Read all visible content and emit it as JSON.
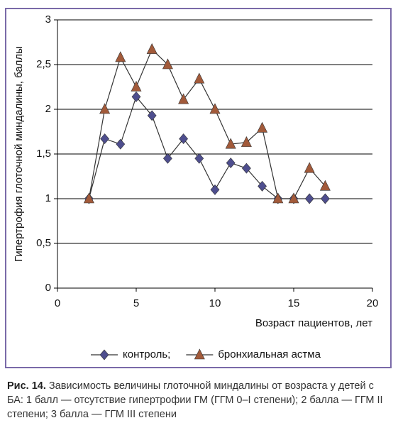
{
  "chart_data": {
    "type": "line",
    "ylabel": "Гипертрофия глоточной миндалины, баллы",
    "xlabel": "Возраст пациентов, лет",
    "x": [
      2,
      3,
      4,
      5,
      6,
      7,
      8,
      9,
      10,
      11,
      12,
      13,
      14,
      15,
      16,
      17
    ],
    "series": [
      {
        "name": "контроль;",
        "color": "#4e4e8e",
        "marker": "diamond",
        "values": [
          1,
          1.67,
          1.61,
          2.14,
          1.93,
          1.45,
          1.67,
          1.45,
          1.1,
          1.4,
          1.34,
          1.14,
          1,
          1,
          1,
          1
        ]
      },
      {
        "name": "бронхиальная астма",
        "color": "#a25a3a",
        "marker": "triangle",
        "values": [
          1,
          2,
          2.58,
          2.25,
          2.67,
          2.5,
          2.11,
          2.34,
          2,
          1.61,
          1.63,
          1.79,
          1,
          1,
          1.34,
          1.14
        ]
      }
    ],
    "xlim": [
      0,
      20
    ],
    "xticks": [
      0,
      5,
      10,
      15,
      20
    ],
    "ylim": [
      0,
      3
    ],
    "yticks": [
      0,
      {
        "value": 0.5,
        "label": "0,5"
      },
      1,
      {
        "value": 1.5,
        "label": "1,5"
      },
      2,
      {
        "value": 2.5,
        "label": "2,5"
      },
      3
    ],
    "grid": true,
    "legend": "bottom"
  },
  "caption": {
    "label": "Рис. 14.",
    "text": "Зависимость величины глоточной миндалины от возраста у детей с БА: 1 балл — отсутствие гипертрофии ГМ (ГГМ 0–I степени); 2 балла — ГГМ II степени; 3 балла — ГГМ III степени"
  }
}
